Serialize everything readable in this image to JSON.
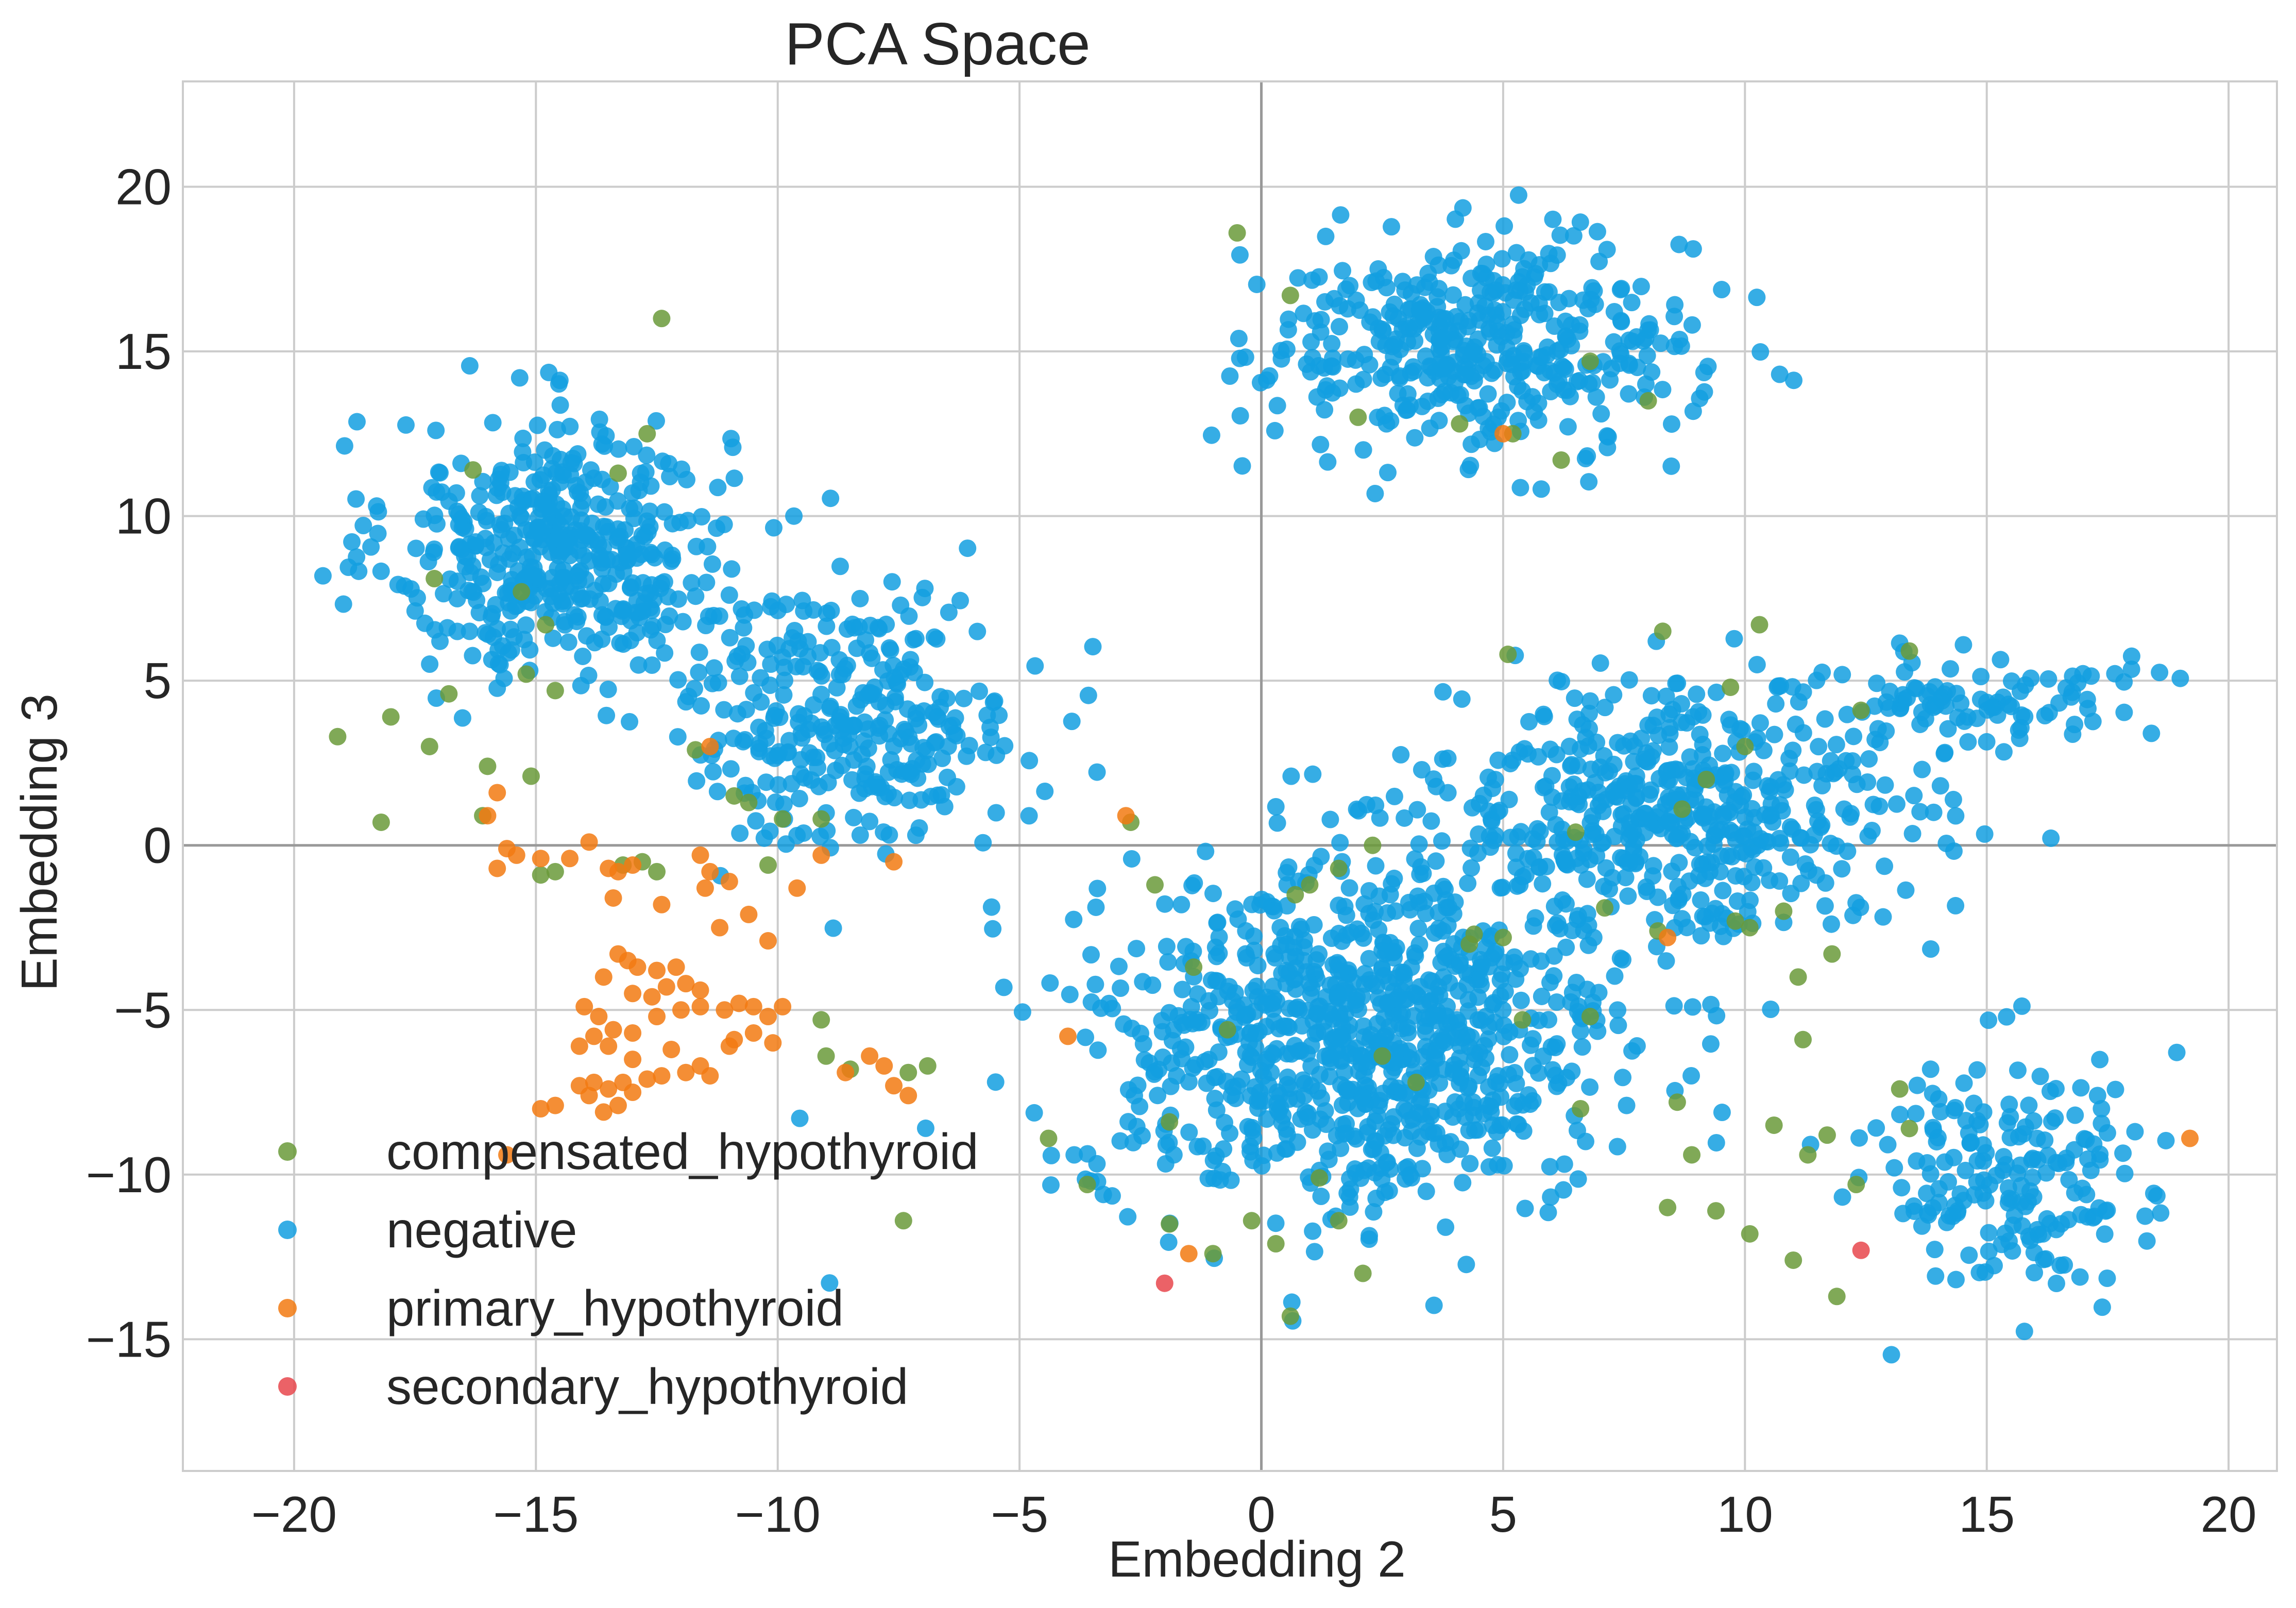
{
  "chart_data": {
    "type": "scatter",
    "title": "PCA Space",
    "xlabel": "Embedding 2",
    "ylabel": "Embedding 3",
    "xlim": [
      -22.3,
      21.0
    ],
    "ylim": [
      -19.0,
      23.2
    ],
    "xticks": [
      -20,
      -15,
      -10,
      -5,
      0,
      5,
      10,
      15,
      20
    ],
    "yticks": [
      -15,
      -10,
      -5,
      0,
      5,
      10,
      15,
      20
    ],
    "xtick_labels": [
      "−20",
      "−15",
      "−10",
      "−5",
      "0",
      "5",
      "10",
      "15",
      "20"
    ],
    "ytick_labels": [
      "−15",
      "−10",
      "−5",
      "0",
      "5",
      "10",
      "15",
      "20"
    ],
    "grid": true,
    "legend_position": "lower-left",
    "negative_clusters_approx": [
      {
        "cx": -14.5,
        "cy": 9.0,
        "sx": 2.8,
        "sy": 3.2,
        "n": 450
      },
      {
        "cx": -8.5,
        "cy": 4.0,
        "sx": 2.8,
        "sy": 3.2,
        "n": 320
      },
      {
        "cx": 4.5,
        "cy": 15.2,
        "sx": 3.6,
        "sy": 2.6,
        "n": 420
      },
      {
        "cx": 2.0,
        "cy": -6.0,
        "sx": 4.5,
        "sy": 4.2,
        "n": 900
      },
      {
        "cx": 8.5,
        "cy": 1.0,
        "sx": 4.0,
        "sy": 3.0,
        "n": 520
      },
      {
        "cx": 14.5,
        "cy": 4.5,
        "sx": 3.0,
        "sy": 1.2,
        "n": 100
      },
      {
        "cx": 15.5,
        "cy": -10.0,
        "sx": 2.4,
        "sy": 3.0,
        "n": 190
      }
    ],
    "series": [
      {
        "name": "compensated_hypothyroid",
        "color": "#6a9a3a",
        "points": [
          [
            -0.5,
            18.6
          ],
          [
            0.6,
            16.7
          ],
          [
            -12.4,
            16.0
          ],
          [
            -12.7,
            12.5
          ],
          [
            -13.3,
            11.3
          ],
          [
            -16.3,
            11.4
          ],
          [
            -17.1,
            8.1
          ],
          [
            -15.3,
            7.7
          ],
          [
            -14.8,
            6.7
          ],
          [
            -15.2,
            5.2
          ],
          [
            -14.6,
            4.7
          ],
          [
            -16.8,
            4.6
          ],
          [
            -19.1,
            3.3
          ],
          [
            -18.0,
            3.9
          ],
          [
            -17.2,
            3.0
          ],
          [
            -16.0,
            2.4
          ],
          [
            -15.1,
            2.1
          ],
          [
            -11.7,
            2.9
          ],
          [
            -10.9,
            1.5
          ],
          [
            -10.6,
            1.3
          ],
          [
            -9.9,
            0.8
          ],
          [
            -9.1,
            0.8
          ],
          [
            -16.1,
            0.9
          ],
          [
            -18.2,
            0.7
          ],
          [
            -13.2,
            -0.6
          ],
          [
            -12.8,
            -0.5
          ],
          [
            -12.5,
            -0.8
          ],
          [
            -14.9,
            -0.9
          ],
          [
            -14.6,
            -0.8
          ],
          [
            -10.2,
            -0.6
          ],
          [
            -9.1,
            -5.3
          ],
          [
            -9.0,
            -6.4
          ],
          [
            -8.5,
            -6.8
          ],
          [
            -7.3,
            -6.9
          ],
          [
            -6.9,
            -6.7
          ],
          [
            -7.4,
            -11.4
          ],
          [
            -2.7,
            0.7
          ],
          [
            -2.2,
            -1.2
          ],
          [
            -1.4,
            -3.7
          ],
          [
            -0.7,
            -5.6
          ],
          [
            -1.9,
            -8.4
          ],
          [
            -4.4,
            -8.9
          ],
          [
            -3.6,
            -10.3
          ],
          [
            -1.9,
            -11.5
          ],
          [
            -1.0,
            -12.4
          ],
          [
            -0.2,
            -11.4
          ],
          [
            0.3,
            -12.1
          ],
          [
            1.2,
            -10.1
          ],
          [
            1.6,
            -11.4
          ],
          [
            2.1,
            -13.0
          ],
          [
            0.6,
            -14.3
          ],
          [
            1.6,
            -0.7
          ],
          [
            1.0,
            -1.2
          ],
          [
            0.7,
            -1.5
          ],
          [
            2.0,
            13.0
          ],
          [
            4.1,
            12.8
          ],
          [
            5.2,
            12.5
          ],
          [
            6.2,
            11.7
          ],
          [
            6.8,
            14.7
          ],
          [
            8.0,
            13.5
          ],
          [
            5.1,
            5.8
          ],
          [
            8.3,
            6.5
          ],
          [
            9.7,
            4.8
          ],
          [
            10.3,
            6.7
          ],
          [
            10.0,
            3.0
          ],
          [
            12.4,
            4.1
          ],
          [
            13.4,
            5.9
          ],
          [
            9.2,
            2.0
          ],
          [
            8.7,
            1.1
          ],
          [
            6.5,
            0.4
          ],
          [
            2.3,
            0.0
          ],
          [
            4.4,
            -2.7
          ],
          [
            7.1,
            -1.9
          ],
          [
            8.2,
            -2.6
          ],
          [
            9.8,
            -2.3
          ],
          [
            10.1,
            -2.5
          ],
          [
            10.8,
            -2.0
          ],
          [
            11.1,
            -4.0
          ],
          [
            11.2,
            -5.9
          ],
          [
            11.8,
            -3.3
          ],
          [
            6.8,
            -5.2
          ],
          [
            8.6,
            -7.8
          ],
          [
            8.9,
            -9.4
          ],
          [
            11.3,
            -9.4
          ],
          [
            8.4,
            -11.0
          ],
          [
            9.4,
            -11.1
          ],
          [
            10.1,
            -11.8
          ],
          [
            11.0,
            -12.6
          ],
          [
            11.9,
            -13.7
          ],
          [
            12.3,
            -10.3
          ],
          [
            13.4,
            -8.6
          ],
          [
            13.2,
            -7.4
          ],
          [
            11.7,
            -8.8
          ],
          [
            10.6,
            -8.5
          ],
          [
            6.6,
            -8.0
          ],
          [
            5.4,
            -5.3
          ],
          [
            5.0,
            -2.8
          ],
          [
            4.3,
            -3.0
          ],
          [
            3.2,
            -7.2
          ],
          [
            2.5,
            -6.4
          ]
        ]
      },
      {
        "name": "negative",
        "color": "#139fe0",
        "points": []
      },
      {
        "name": "primary_hypothyroid",
        "color": "#f27a12",
        "points": [
          [
            -15.8,
            1.6
          ],
          [
            -16.0,
            0.9
          ],
          [
            -15.6,
            -0.1
          ],
          [
            -15.4,
            -0.3
          ],
          [
            -15.8,
            -0.7
          ],
          [
            -14.9,
            -0.4
          ],
          [
            -14.3,
            -0.4
          ],
          [
            -13.9,
            0.1
          ],
          [
            -13.5,
            -0.7
          ],
          [
            -13.3,
            -0.8
          ],
          [
            -13.0,
            -0.6
          ],
          [
            -11.6,
            -0.3
          ],
          [
            -11.4,
            -0.8
          ],
          [
            -11.0,
            -1.1
          ],
          [
            -11.5,
            -1.3
          ],
          [
            -13.4,
            -1.6
          ],
          [
            -12.4,
            -1.8
          ],
          [
            -10.6,
            -2.1
          ],
          [
            -11.2,
            -2.5
          ],
          [
            -9.6,
            -1.3
          ],
          [
            -10.2,
            -2.9
          ],
          [
            -13.3,
            -3.3
          ],
          [
            -13.1,
            -3.5
          ],
          [
            -12.9,
            -3.7
          ],
          [
            -12.5,
            -3.8
          ],
          [
            -12.1,
            -3.7
          ],
          [
            -13.6,
            -4.0
          ],
          [
            -12.3,
            -4.3
          ],
          [
            -13.0,
            -4.5
          ],
          [
            -12.6,
            -4.6
          ],
          [
            -11.9,
            -4.2
          ],
          [
            -11.6,
            -4.4
          ],
          [
            -14.0,
            -4.9
          ],
          [
            -13.7,
            -5.2
          ],
          [
            -13.4,
            -5.6
          ],
          [
            -13.8,
            -5.8
          ],
          [
            -14.1,
            -6.1
          ],
          [
            -13.5,
            -6.1
          ],
          [
            -13.0,
            -5.7
          ],
          [
            -12.5,
            -5.2
          ],
          [
            -12.0,
            -5.0
          ],
          [
            -11.6,
            -4.9
          ],
          [
            -11.1,
            -5.0
          ],
          [
            -10.8,
            -4.8
          ],
          [
            -10.5,
            -4.9
          ],
          [
            -10.2,
            -5.2
          ],
          [
            -9.9,
            -4.9
          ],
          [
            -10.5,
            -5.7
          ],
          [
            -10.9,
            -5.9
          ],
          [
            -12.2,
            -6.2
          ],
          [
            -13.0,
            -6.5
          ],
          [
            -11.6,
            -6.7
          ],
          [
            -11.0,
            -6.1
          ],
          [
            -10.1,
            -6.0
          ],
          [
            -14.1,
            -7.3
          ],
          [
            -13.8,
            -7.2
          ],
          [
            -13.5,
            -7.4
          ],
          [
            -13.2,
            -7.2
          ],
          [
            -13.9,
            -7.6
          ],
          [
            -14.6,
            -7.9
          ],
          [
            -14.9,
            -8.0
          ],
          [
            -13.6,
            -8.1
          ],
          [
            -13.3,
            -7.9
          ],
          [
            -13.0,
            -7.5
          ],
          [
            -12.7,
            -7.1
          ],
          [
            -12.4,
            -7.0
          ],
          [
            -11.9,
            -6.9
          ],
          [
            -11.4,
            -7.0
          ],
          [
            -8.6,
            -6.9
          ],
          [
            -8.1,
            -6.4
          ],
          [
            -7.8,
            -6.7
          ],
          [
            -7.6,
            -7.3
          ],
          [
            -7.3,
            -7.6
          ],
          [
            -9.1,
            -0.3
          ],
          [
            -7.6,
            -0.5
          ],
          [
            -2.8,
            0.9
          ],
          [
            -4.0,
            -5.8
          ],
          [
            -1.5,
            -12.4
          ],
          [
            5.0,
            12.5
          ],
          [
            8.4,
            -2.8
          ],
          [
            19.2,
            -8.9
          ],
          [
            -11.4,
            3.0
          ],
          [
            -15.6,
            -9.4
          ]
        ]
      },
      {
        "name": "secondary_hypothyroid",
        "color": "#e8474c",
        "points": [
          [
            -2.0,
            -13.3
          ],
          [
            12.4,
            -12.3
          ]
        ]
      }
    ]
  }
}
